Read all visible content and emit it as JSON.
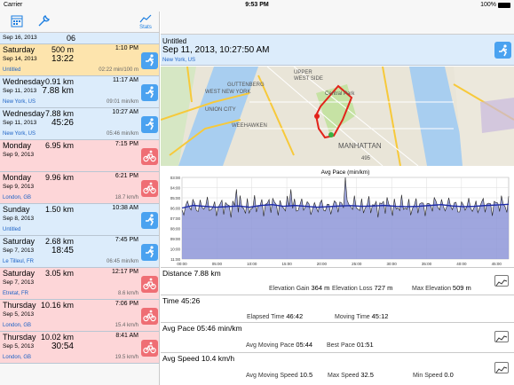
{
  "status": {
    "carrier": "Carrier",
    "time": "9:53 PM",
    "battery": "100%"
  },
  "toolbar": {
    "stats_label": "Stats"
  },
  "workouts": [
    {
      "day": "Sep 16, 2013",
      "dist": "06",
      "time_of_day": "",
      "dur": "",
      "loc": "Untitled",
      "meta": "",
      "type": "run",
      "bg": "#dcecfb"
    },
    {
      "day": "Saturday",
      "dist": "500 m",
      "time_of_day": "1:10 PM",
      "date": "Sep 14, 2013",
      "dur": "13:22",
      "loc": "Untitled",
      "meta": "02:22 min/100 m",
      "type": "run",
      "bg": "#fde4ad"
    },
    {
      "day": "Wednesday",
      "dist": "0.91 km",
      "time_of_day": "11:17 AM",
      "date": "Sep 11, 2013",
      "dur": "7.88 km",
      "loc": "New York, US",
      "meta": "09:01 min/km",
      "type": "run",
      "bg": "#dcecfb"
    },
    {
      "day": "Wednesday",
      "dist": "7.88 km",
      "time_of_day": "10:27 AM",
      "date": "Sep 11, 2013",
      "dur": "45:26",
      "loc": "New York, US",
      "meta": "05:46 min/km",
      "type": "run",
      "bg": "#dcecfb"
    },
    {
      "day": "Monday",
      "dist": "6.95 km",
      "time_of_day": "7:15 PM",
      "date": "Sep 9, 2013",
      "dur": "",
      "loc": "",
      "meta": "",
      "type": "bike",
      "bg": "#fdd6d8"
    },
    {
      "day": "Monday",
      "dist": "9.96 km",
      "time_of_day": "6:21 PM",
      "date": "Sep 9, 2013",
      "dur": "",
      "loc": "London, GB",
      "meta": "18.7 km/h",
      "type": "bike",
      "bg": "#fdd6d8"
    },
    {
      "day": "Sunday",
      "dist": "1.50 km",
      "time_of_day": "10:38 AM",
      "date": "Sep 8, 2013",
      "dur": "",
      "loc": "Untitled",
      "meta": "",
      "type": "run",
      "bg": "#dcecfb"
    },
    {
      "day": "Saturday",
      "dist": "2.68 km",
      "time_of_day": "7:45 PM",
      "date": "Sep 7, 2013",
      "dur": "18:45",
      "loc": "Le Tilleul, FR",
      "meta": "06:45 min/km",
      "type": "run",
      "bg": "#dcecfb"
    },
    {
      "day": "Saturday",
      "dist": "3.05 km",
      "time_of_day": "12:17 PM",
      "date": "Sep 7, 2013",
      "dur": "",
      "loc": "Etretat, FR",
      "meta": "8.6 km/h",
      "type": "bike",
      "bg": "#fdd6d8"
    },
    {
      "day": "Thursday",
      "dist": "10.16 km",
      "time_of_day": "7:06 PM",
      "date": "Sep 5, 2013",
      "dur": "",
      "loc": "London, GB",
      "meta": "15.4 km/h",
      "type": "bike",
      "bg": "#fdd6d8"
    },
    {
      "day": "Thursday",
      "dist": "10.02 km",
      "time_of_day": "8:41 AM",
      "date": "Sep 5, 2013",
      "dur": "30:54",
      "loc": "London, GB",
      "meta": "19.5 km/h",
      "type": "bike",
      "bg": "#fdd6d8"
    }
  ],
  "detail": {
    "title": "Untitled",
    "datetime": "Sep 11, 2013, 10:27:50 AM",
    "location": "New York, US"
  },
  "map_labels": [
    "UPPER",
    "WEST SIDE",
    "UNION CITY",
    "WEEHAWKEN",
    "MANHATTAN",
    "Central Park",
    "GUTTENBERG",
    "WEST NEW YORK",
    "495"
  ],
  "chart_data": {
    "type": "area",
    "title": "Avg Pace (min/km)",
    "x_ticks": [
      "00:00",
      "05:00",
      "10:00",
      "15:00",
      "20:00",
      "25:00",
      "30:00",
      "35:00",
      "40:00",
      "45:00"
    ],
    "y_ticks": [
      "03:00",
      "04:00",
      "05:00",
      "06:00",
      "07:00",
      "08:00",
      "09:00",
      "10:00",
      "11:00"
    ],
    "ylim_seconds": [
      180,
      660
    ],
    "smoothed_pace_seconds": [
      360,
      345,
      350,
      355,
      352,
      348,
      355,
      345,
      340,
      350,
      345,
      350,
      355,
      352,
      348,
      346,
      350,
      348,
      345,
      350,
      352,
      350,
      345,
      340,
      348,
      352,
      350,
      345,
      342,
      338
    ]
  },
  "stats": {
    "distance": {
      "label": "Distance",
      "value": "7.88 km"
    },
    "elevation_gain": {
      "label": "Elevation Gain",
      "value": "364 m"
    },
    "elevation_loss": {
      "label": "Elevation Loss",
      "value": "727 m"
    },
    "max_elevation": {
      "label": "Max Elevation",
      "value": "509 m"
    },
    "time": {
      "label": "Time",
      "value": "45:26"
    },
    "elapsed_time": {
      "label": "Elapsed Time",
      "value": "46:42"
    },
    "moving_time": {
      "label": "Moving Time",
      "value": "45:12"
    },
    "avg_pace": {
      "label": "Avg Pace",
      "value": "05:46 min/km"
    },
    "avg_moving_pace": {
      "label": "Avg Moving Pace",
      "value": "05:44"
    },
    "best_pace": {
      "label": "Best Pace",
      "value": "01:51"
    },
    "avg_speed": {
      "label": "Avg Speed",
      "value": "10.4 km/h"
    },
    "avg_moving_speed": {
      "label": "Avg Moving Speed",
      "value": "10.5"
    },
    "max_speed": {
      "label": "Max Speed",
      "value": "32.5"
    },
    "min_speed": {
      "label": "Min Speed",
      "value": "0.0"
    }
  },
  "colors": {
    "accent": "#1a7de0",
    "run": "#4aa2f0",
    "bike": "#ef6e74",
    "chart_fill": "#8e96d8",
    "chart_line": "#1c2aa8"
  }
}
